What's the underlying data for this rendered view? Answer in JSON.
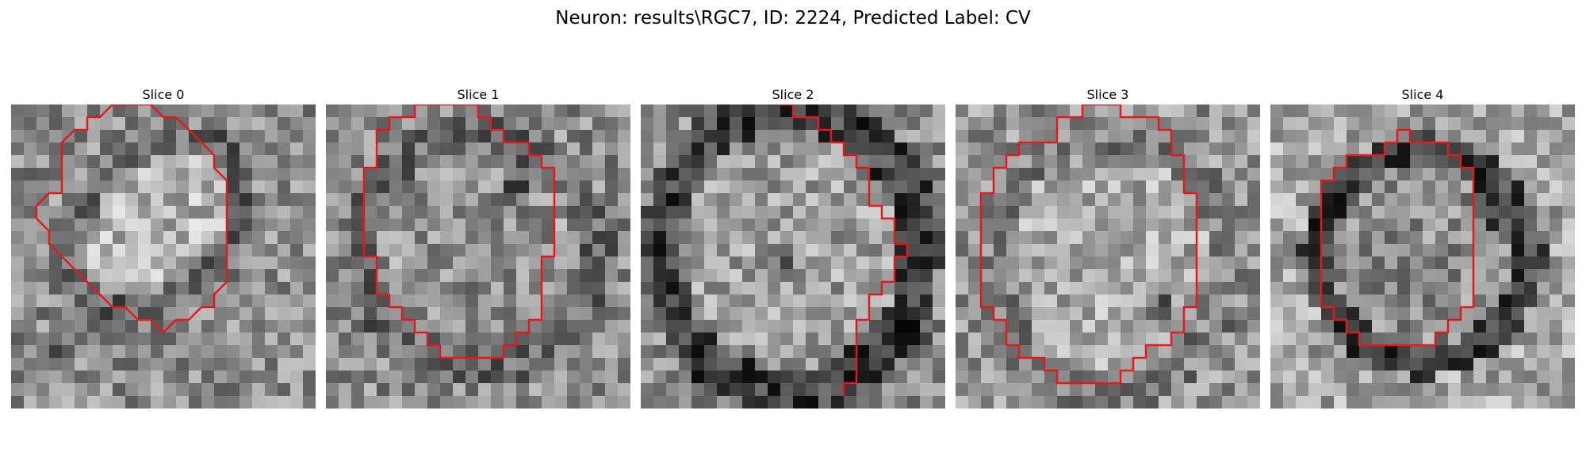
{
  "figure": {
    "title": "Neuron: results\\RGC7, ID: 2224, Predicted Label: CV"
  },
  "panels": [
    {
      "label": "Slice 0"
    },
    {
      "label": "Slice 1"
    },
    {
      "label": "Slice 2"
    },
    {
      "label": "Slice 3"
    },
    {
      "label": "Slice 4"
    }
  ],
  "colors": {
    "contour": "#e31a1c",
    "background": "#ffffff"
  }
}
